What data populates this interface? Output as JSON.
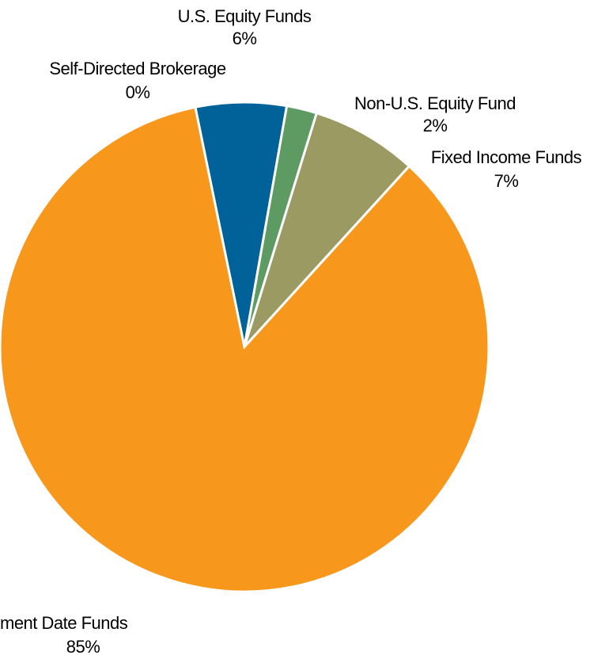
{
  "chart_data": {
    "type": "pie",
    "categories": [
      "Self-Directed Brokerage",
      "U.S. Equity Funds",
      "Non-U.S. Equity Fund",
      "Fixed Income Funds",
      "ment Date Funds"
    ],
    "values": [
      0,
      6,
      2,
      7,
      85
    ],
    "value_labels": [
      "0%",
      "6%",
      "2%",
      "7%",
      "85%"
    ],
    "colors": [
      "#7f7f7f",
      "#006298",
      "#5e9b63",
      "#9a9a62",
      "#f7981d"
    ]
  }
}
